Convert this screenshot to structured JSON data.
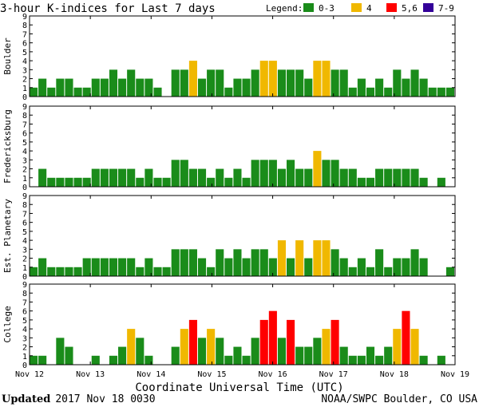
{
  "chart_data": {
    "type": "bar",
    "title": "3-hour K-indices for Last 7 days",
    "legend": {
      "label": "Legend:",
      "entries": [
        {
          "label": "0-3",
          "color": "#1a8c1a"
        },
        {
          "label": "4",
          "color": "#f0b800"
        },
        {
          "label": "5,6",
          "color": "#ff0000"
        },
        {
          "label": "7-9",
          "color": "#330099"
        }
      ]
    },
    "ylim": [
      0,
      9
    ],
    "yticks": [
      "0",
      "1",
      "2",
      "3",
      "4",
      "5",
      "6",
      "7",
      "8",
      "9"
    ],
    "xlabel": "Coordinate Universal Time (UTC)",
    "xticks": [
      "Nov 12",
      "Nov 13",
      "Nov 14",
      "Nov 15",
      "Nov 16",
      "Nov 17",
      "Nov 18",
      "Nov 19"
    ],
    "panels": [
      {
        "name": "Boulder",
        "values": [
          1,
          2,
          1,
          2,
          2,
          1,
          1,
          2,
          2,
          3,
          2,
          3,
          2,
          2,
          1,
          0,
          3,
          3,
          4,
          2,
          3,
          3,
          1,
          2,
          2,
          3,
          4,
          4,
          3,
          3,
          3,
          2,
          4,
          4,
          3,
          3,
          1,
          2,
          1,
          2,
          1,
          3,
          2,
          3,
          2,
          1,
          1,
          1
        ]
      },
      {
        "name": "Fredericksburg",
        "values": [
          0,
          2,
          1,
          1,
          1,
          1,
          1,
          2,
          2,
          2,
          2,
          2,
          1,
          2,
          1,
          1,
          3,
          3,
          2,
          2,
          1,
          2,
          1,
          2,
          1,
          3,
          3,
          3,
          2,
          3,
          2,
          2,
          4,
          3,
          3,
          2,
          2,
          1,
          1,
          2,
          2,
          2,
          2,
          2,
          1,
          0,
          1,
          0
        ]
      },
      {
        "name": "Est. Planetary",
        "values": [
          1,
          2,
          1,
          1,
          1,
          1,
          2,
          2,
          2,
          2,
          2,
          2,
          1,
          2,
          1,
          1,
          3,
          3,
          3,
          2,
          1,
          3,
          2,
          3,
          2,
          3,
          3,
          2,
          4,
          2,
          4,
          2,
          4,
          4,
          3,
          2,
          1,
          2,
          1,
          3,
          1,
          2,
          2,
          3,
          2,
          0,
          0,
          1
        ]
      },
      {
        "name": "College",
        "values": [
          1,
          1,
          0,
          3,
          2,
          0,
          0,
          1,
          0,
          1,
          2,
          4,
          3,
          1,
          0,
          0,
          2,
          4,
          5,
          3,
          4,
          3,
          1,
          2,
          1,
          3,
          5,
          6,
          3,
          5,
          2,
          2,
          3,
          4,
          5,
          2,
          1,
          1,
          2,
          1,
          2,
          4,
          6,
          4,
          1,
          0,
          1,
          0
        ]
      }
    ]
  },
  "footer": {
    "updated_label": "Updated",
    "updated_value": "2017 Nov 18 0030",
    "credit": "NOAA/SWPC Boulder, CO USA"
  }
}
